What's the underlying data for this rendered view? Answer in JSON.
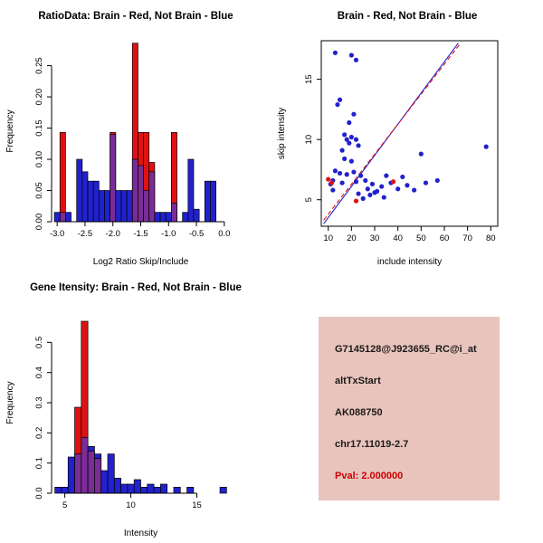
{
  "figure": {
    "bg_color": "#FFFFFF"
  },
  "colors": {
    "brain": "#DF1212",
    "not_brain": "#2121CE",
    "overlap": "#7A2D96",
    "axis": "#000000"
  },
  "panels": {
    "info_box": {
      "bg_color": "#E9C4BC",
      "lines": [
        {
          "text": "G7145128@J923655_RC@i_at",
          "color": "#1A1A1A"
        },
        {
          "text": "altTxStart",
          "color": "#1A1A1A"
        },
        {
          "text": "AK088750",
          "color": "#1A1A1A"
        },
        {
          "text": "chr17.11019-2.7",
          "color": "#1A1A1A"
        },
        {
          "text": "Pval: 2.000000",
          "color": "#CC0000"
        }
      ]
    }
  },
  "chart_data": [
    {
      "type": "bar",
      "subtype": "overlaid-histogram",
      "title": "RatioData: Brain - Red, Not Brain - Blue",
      "xlabel": "Log2 Ratio Skip/Include",
      "ylabel": "Frequency",
      "xlim": [
        -3.1,
        0.1
      ],
      "ylim": [
        0,
        0.29
      ],
      "xticks": [
        -3.0,
        -2.5,
        -2.0,
        -1.5,
        -1.0,
        -0.5,
        0.0
      ],
      "xtick_labels": [
        "-3.0",
        "-2.5",
        "-2.0",
        "-1.5",
        "-1.0",
        "-0.5",
        "0.0"
      ],
      "yticks": [
        0.0,
        0.05,
        0.1,
        0.15,
        0.2,
        0.25
      ],
      "ytick_labels": [
        "0.00",
        "0.05",
        "0.10",
        "0.15",
        "0.20",
        "0.25"
      ],
      "bin_width": 0.1,
      "series_legend": [
        {
          "name": "Brain",
          "color_key": "brain"
        },
        {
          "name": "Not Brain",
          "color_key": "not_brain"
        }
      ],
      "bins": [
        [
          -3.0,
          0,
          0.015
        ],
        [
          -2.9,
          0.143,
          0.015
        ],
        [
          -2.8,
          0,
          0.015
        ],
        [
          -2.6,
          0,
          0.1
        ],
        [
          -2.5,
          0,
          0.08
        ],
        [
          -2.4,
          0,
          0.065
        ],
        [
          -2.3,
          0,
          0.065
        ],
        [
          -2.2,
          0,
          0.05
        ],
        [
          -2.1,
          0,
          0.05
        ],
        [
          -2.0,
          0.143,
          0.14
        ],
        [
          -1.9,
          0,
          0.05
        ],
        [
          -1.8,
          0,
          0.05
        ],
        [
          -1.7,
          0,
          0.05
        ],
        [
          -1.6,
          0.286,
          0.1
        ],
        [
          -1.5,
          0.143,
          0.09
        ],
        [
          -1.4,
          0.143,
          0.05
        ],
        [
          -1.3,
          0.095,
          0.08
        ],
        [
          -1.2,
          0,
          0.015
        ],
        [
          -1.1,
          0,
          0.015
        ],
        [
          -1.0,
          0,
          0.015
        ],
        [
          -0.9,
          0.143,
          0.03
        ],
        [
          -0.7,
          0,
          0.015
        ],
        [
          -0.6,
          0,
          0.1
        ],
        [
          -0.5,
          0,
          0.02
        ],
        [
          -0.3,
          0,
          0.065
        ],
        [
          -0.2,
          0,
          0.065
        ]
      ]
    },
    {
      "type": "scatter",
      "title": "Brain - Red, Not Brain - Blue",
      "xlabel": "include intensity",
      "ylabel": "skip intensity",
      "xlim": [
        7,
        83
      ],
      "ylim": [
        2.8,
        18.2
      ],
      "xticks": [
        10,
        20,
        30,
        40,
        50,
        60,
        70,
        80
      ],
      "xtick_labels": [
        "10",
        "20",
        "30",
        "40",
        "50",
        "60",
        "70",
        "80"
      ],
      "yticks": [
        5,
        10,
        15
      ],
      "ytick_labels": [
        "5",
        "10",
        "15"
      ],
      "series": [
        {
          "name": "Not Brain",
          "color_key": "not_brain",
          "points": [
            [
              11,
              6.3
            ],
            [
              12,
              6.6
            ],
            [
              12,
              5.8
            ],
            [
              13,
              7.4
            ],
            [
              13,
              17.2
            ],
            [
              14,
              12.9
            ],
            [
              15,
              13.3
            ],
            [
              15,
              7.2
            ],
            [
              16,
              9.1
            ],
            [
              16,
              6.4
            ],
            [
              17,
              10.4
            ],
            [
              17,
              8.4
            ],
            [
              18,
              10.0
            ],
            [
              18,
              7.1
            ],
            [
              19,
              9.7
            ],
            [
              19,
              11.4
            ],
            [
              20,
              17.0
            ],
            [
              20,
              10.2
            ],
            [
              20,
              8.2
            ],
            [
              21,
              7.3
            ],
            [
              21,
              12.1
            ],
            [
              22,
              16.6
            ],
            [
              22,
              10.0
            ],
            [
              22,
              6.5
            ],
            [
              23,
              9.5
            ],
            [
              23,
              5.5
            ],
            [
              24,
              7.0
            ],
            [
              25,
              5.1
            ],
            [
              26,
              6.6
            ],
            [
              27,
              5.9
            ],
            [
              28,
              5.4
            ],
            [
              29,
              6.3
            ],
            [
              30,
              5.6
            ],
            [
              31,
              5.7
            ],
            [
              33,
              6.1
            ],
            [
              34,
              5.2
            ],
            [
              35,
              7.0
            ],
            [
              37,
              6.4
            ],
            [
              40,
              5.9
            ],
            [
              42,
              6.9
            ],
            [
              44,
              6.2
            ],
            [
              47,
              5.8
            ],
            [
              50,
              8.8
            ],
            [
              52,
              6.4
            ],
            [
              57,
              6.6
            ],
            [
              78,
              9.4
            ]
          ]
        },
        {
          "name": "Brain",
          "color_key": "brain",
          "points": [
            [
              10,
              6.7
            ],
            [
              11.5,
              6.4
            ],
            [
              22,
              4.9
            ],
            [
              38,
              6.5
            ]
          ]
        }
      ],
      "lines": [
        {
          "color_key": "not_brain",
          "dash": "",
          "x1": 8,
          "y1": 3.0,
          "x2": 66,
          "y2": 18.0
        },
        {
          "color_key": "brain",
          "dash": "5,3",
          "x1": 8,
          "y1": 3.3,
          "x2": 67,
          "y2": 18.0
        }
      ]
    },
    {
      "type": "bar",
      "subtype": "overlaid-histogram",
      "title": "Gene Itensity: Brain - Red, Not Brain - Blue",
      "xlabel": "Intensity",
      "ylabel": "Frequency",
      "xlim": [
        4.0,
        17.5
      ],
      "ylim": [
        0,
        0.6
      ],
      "xticks": [
        5,
        10,
        15
      ],
      "xtick_labels": [
        "5",
        "10",
        "15"
      ],
      "yticks": [
        0.0,
        0.1,
        0.2,
        0.3,
        0.4,
        0.5
      ],
      "ytick_labels": [
        "0.0",
        "0.1",
        "0.2",
        "0.3",
        "0.4",
        "0.5"
      ],
      "bin_width": 0.5,
      "series_legend": [
        {
          "name": "Brain",
          "color_key": "brain"
        },
        {
          "name": "Not Brain",
          "color_key": "not_brain"
        }
      ],
      "bins": [
        [
          4.5,
          0,
          0.02
        ],
        [
          5.0,
          0,
          0.02
        ],
        [
          5.5,
          0,
          0.12
        ],
        [
          6.0,
          0.285,
          0.13
        ],
        [
          6.5,
          0.57,
          0.185
        ],
        [
          7.0,
          0.14,
          0.155
        ],
        [
          7.5,
          0.115,
          0.13
        ],
        [
          8.0,
          0,
          0.075
        ],
        [
          8.5,
          0,
          0.13
        ],
        [
          9.0,
          0,
          0.05
        ],
        [
          9.5,
          0,
          0.03
        ],
        [
          10.0,
          0,
          0.03
        ],
        [
          10.5,
          0,
          0.045
        ],
        [
          11.0,
          0,
          0.02
        ],
        [
          11.5,
          0,
          0.03
        ],
        [
          12.0,
          0,
          0.02
        ],
        [
          12.5,
          0,
          0.03
        ],
        [
          13.5,
          0,
          0.02
        ],
        [
          14.5,
          0,
          0.02
        ],
        [
          17.0,
          0,
          0.02
        ]
      ]
    }
  ]
}
